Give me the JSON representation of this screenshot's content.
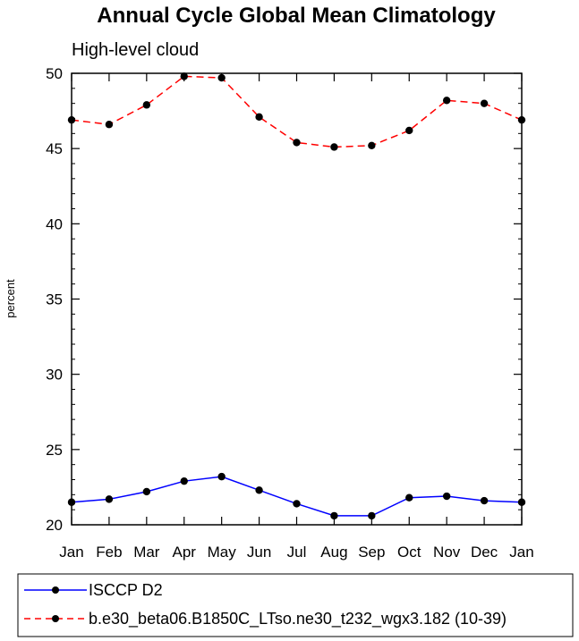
{
  "chart_data": {
    "type": "line",
    "title": "Annual Cycle Global Mean Climatology",
    "subtitle": "High-level cloud",
    "xlabel": "",
    "ylabel": "percent",
    "x": [
      "Jan",
      "Feb",
      "Mar",
      "Apr",
      "May",
      "Jun",
      "Jul",
      "Aug",
      "Sep",
      "Oct",
      "Nov",
      "Dec",
      "Jan"
    ],
    "ylim": [
      20,
      50
    ],
    "yticks": [
      20,
      25,
      30,
      35,
      40,
      45,
      50
    ],
    "grid": false,
    "legend_position": "bottom",
    "series": [
      {
        "name": "ISCCP D2",
        "color": "#0000ff",
        "line_style": "solid",
        "marker": "circle",
        "values": [
          21.5,
          21.7,
          22.2,
          22.9,
          23.2,
          22.3,
          21.4,
          20.6,
          20.6,
          21.8,
          21.9,
          21.6,
          21.5
        ]
      },
      {
        "name": "b.e30_beta06.B1850C_LTso.ne30_t232_wgx3.182 (10-39)",
        "color": "#ff0000",
        "line_style": "dashed",
        "marker": "circle",
        "values": [
          46.9,
          46.6,
          47.9,
          49.8,
          49.7,
          47.1,
          45.4,
          45.1,
          45.2,
          46.2,
          48.2,
          48.0,
          46.9
        ]
      }
    ]
  }
}
